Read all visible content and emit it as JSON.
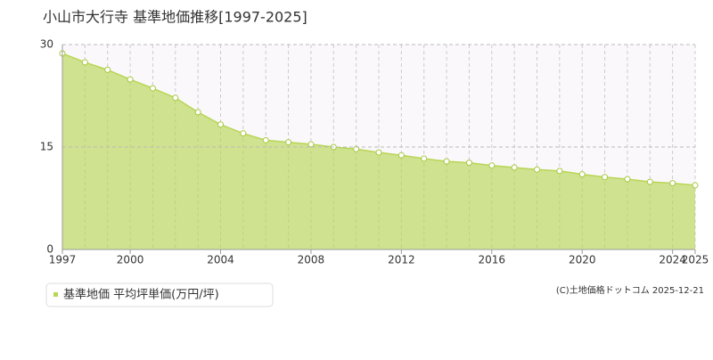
{
  "chart_data": {
    "type": "area",
    "title": "小山市大行寺 基準地価推移[1997-2025]",
    "x": [
      1997,
      1998,
      1999,
      2000,
      2001,
      2002,
      2003,
      2004,
      2005,
      2006,
      2007,
      2008,
      2009,
      2010,
      2011,
      2012,
      2013,
      2014,
      2015,
      2016,
      2017,
      2018,
      2019,
      2020,
      2021,
      2022,
      2023,
      2024,
      2025
    ],
    "series": [
      {
        "name": "基準地価 平均坪単価(万円/坪)",
        "color": "#b8d655",
        "values": [
          28.7,
          27.4,
          26.3,
          24.9,
          23.6,
          22.2,
          20.1,
          18.3,
          17.0,
          16.0,
          15.7,
          15.4,
          15.0,
          14.7,
          14.2,
          13.8,
          13.3,
          12.9,
          12.7,
          12.3,
          12.0,
          11.7,
          11.5,
          11.0,
          10.6,
          10.3,
          9.9,
          9.7,
          9.4
        ]
      }
    ],
    "xlim": [
      1997,
      2025
    ],
    "xticks": [
      1997,
      2000,
      2004,
      2008,
      2012,
      2016,
      2020,
      2024,
      2025
    ],
    "ylim": [
      0,
      30
    ],
    "yticks": [
      0,
      15,
      30
    ],
    "grid": true,
    "copyright": "(C)土地価格ドットコム 2025-12-21"
  }
}
